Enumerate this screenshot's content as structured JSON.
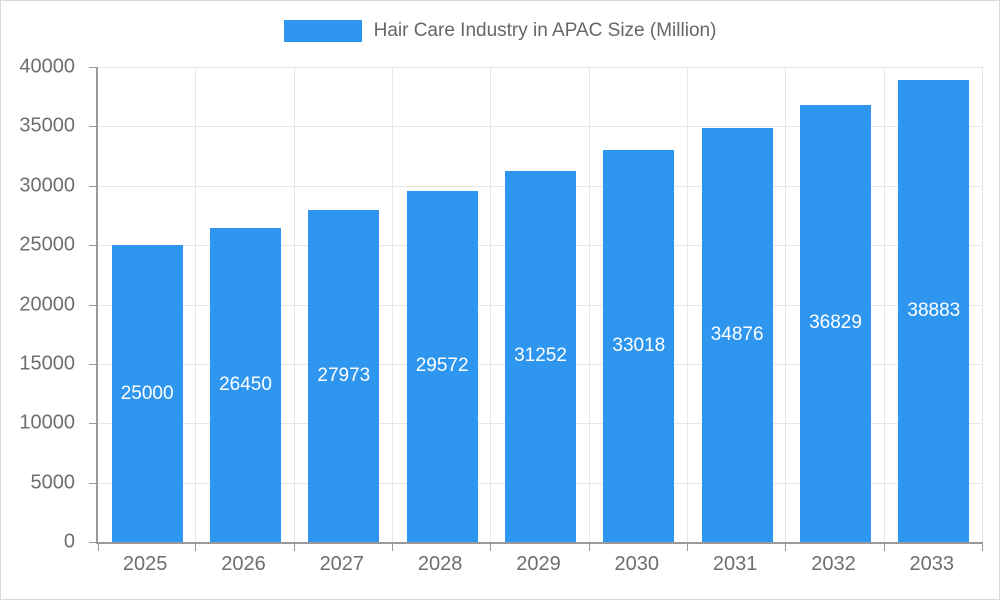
{
  "chart_data": {
    "type": "bar",
    "title": "Hair Care Industry in APAC Size (Million)",
    "categories": [
      "2025",
      "2026",
      "2027",
      "2028",
      "2029",
      "2030",
      "2031",
      "2032",
      "2033"
    ],
    "values": [
      25000,
      26450,
      27973,
      29572,
      31252,
      33018,
      34876,
      36829,
      38883
    ],
    "xlabel": "",
    "ylabel": "",
    "ylim": [
      0,
      40000
    ],
    "ytick_step": 5000,
    "grid": true,
    "legend_position": "top",
    "colors": {
      "bar": "#2F96F0",
      "bar_label": "#ffffff",
      "axis_line": "#999999",
      "gridline": "#e6e6e6",
      "tick_label": "#6e6e6e",
      "title": "#666666",
      "background": "#ffffff"
    }
  }
}
